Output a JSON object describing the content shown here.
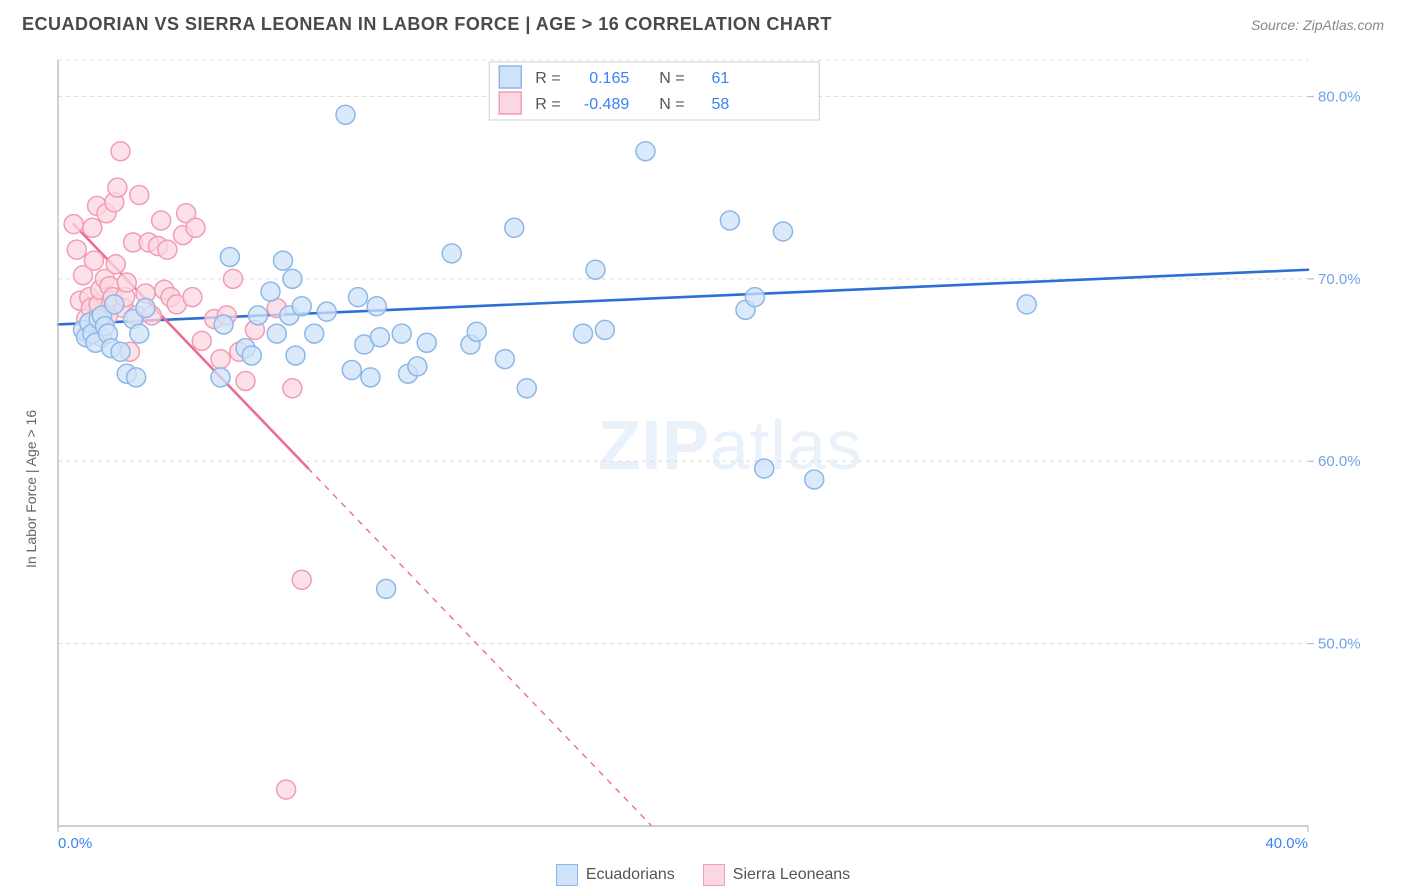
{
  "header": {
    "title": "ECUADORIAN VS SIERRA LEONEAN IN LABOR FORCE | AGE > 16 CORRELATION CHART",
    "source": "Source: ZipAtlas.com"
  },
  "chart": {
    "type": "scatter",
    "watermark": "ZIPatlas",
    "ylabel": "In Labor Force | Age > 16",
    "xlim": [
      0,
      40
    ],
    "ylim": [
      40,
      82
    ],
    "xticks": [
      {
        "v": 0,
        "label": "0.0%"
      },
      {
        "v": 40,
        "label": "40.0%"
      }
    ],
    "yticks": [
      {
        "v": 50,
        "label": "50.0%"
      },
      {
        "v": 60,
        "label": "60.0%"
      },
      {
        "v": 70,
        "label": "70.0%"
      },
      {
        "v": 80,
        "label": "80.0%"
      }
    ],
    "y_gridlines": [
      50,
      60,
      70,
      80,
      82
    ],
    "background_color": "#ffffff",
    "grid_color": "#dcdcdc",
    "axis_color": "#bdbdbd",
    "tick_color_x": "#3b82f6",
    "tick_color_y": "#6fa3e6",
    "marker_radius": 9.5,
    "marker_stroke_width": 1.5,
    "series": [
      {
        "name": "Ecuadorians",
        "fill": "#cfe3f8",
        "stroke": "#8cb8e8",
        "line_color": "#2e6fd6",
        "line_width": 2.6,
        "regression": {
          "x0": 0,
          "y0": 67.5,
          "x1": 40,
          "y1": 70.5,
          "solid_until": 40
        },
        "R": "0.165",
        "N": "61",
        "points": [
          [
            0.8,
            67.2
          ],
          [
            0.9,
            66.8
          ],
          [
            1.0,
            67.6
          ],
          [
            1.1,
            67.0
          ],
          [
            1.2,
            66.5
          ],
          [
            1.3,
            67.8
          ],
          [
            1.4,
            68.0
          ],
          [
            1.5,
            67.4
          ],
          [
            1.6,
            67.0
          ],
          [
            1.7,
            66.2
          ],
          [
            1.8,
            68.6
          ],
          [
            2.0,
            66.0
          ],
          [
            2.2,
            64.8
          ],
          [
            2.4,
            67.8
          ],
          [
            2.5,
            64.6
          ],
          [
            2.6,
            67.0
          ],
          [
            2.8,
            68.4
          ],
          [
            5.2,
            64.6
          ],
          [
            5.3,
            67.5
          ],
          [
            5.5,
            71.2
          ],
          [
            6.0,
            66.2
          ],
          [
            6.2,
            65.8
          ],
          [
            6.4,
            68.0
          ],
          [
            6.8,
            69.3
          ],
          [
            7.0,
            67.0
          ],
          [
            7.2,
            71.0
          ],
          [
            7.4,
            68.0
          ],
          [
            7.5,
            70.0
          ],
          [
            7.6,
            65.8
          ],
          [
            7.8,
            68.5
          ],
          [
            8.2,
            67.0
          ],
          [
            8.6,
            68.2
          ],
          [
            9.2,
            79.0
          ],
          [
            9.4,
            65.0
          ],
          [
            9.6,
            69.0
          ],
          [
            9.8,
            66.4
          ],
          [
            10.0,
            64.6
          ],
          [
            10.2,
            68.5
          ],
          [
            10.3,
            66.8
          ],
          [
            10.5,
            53.0
          ],
          [
            11.0,
            67.0
          ],
          [
            11.2,
            64.8
          ],
          [
            11.5,
            65.2
          ],
          [
            11.8,
            66.5
          ],
          [
            12.6,
            71.4
          ],
          [
            13.2,
            66.4
          ],
          [
            13.4,
            67.1
          ],
          [
            14.3,
            65.6
          ],
          [
            14.6,
            72.8
          ],
          [
            15.0,
            64.0
          ],
          [
            16.8,
            67.0
          ],
          [
            17.2,
            70.5
          ],
          [
            17.5,
            67.2
          ],
          [
            18.8,
            77.0
          ],
          [
            21.5,
            73.2
          ],
          [
            22.0,
            68.3
          ],
          [
            22.3,
            69.0
          ],
          [
            22.6,
            59.6
          ],
          [
            23.2,
            72.6
          ],
          [
            24.2,
            59.0
          ],
          [
            31.0,
            68.6
          ]
        ]
      },
      {
        "name": "Sierra Leoneans",
        "fill": "#fbd7e2",
        "stroke": "#f29cb5",
        "line_color": "#ec6d94",
        "line_width": 2.6,
        "regression": {
          "x0": 0.5,
          "y0": 73.0,
          "x1": 19.0,
          "y1": 40.0,
          "solid_until": 8.0
        },
        "R": "-0.489",
        "N": "58",
        "points": [
          [
            0.5,
            73.0
          ],
          [
            0.6,
            71.6
          ],
          [
            0.7,
            68.8
          ],
          [
            0.8,
            70.2
          ],
          [
            0.9,
            67.8
          ],
          [
            0.95,
            67.0
          ],
          [
            1.0,
            69.0
          ],
          [
            1.05,
            68.4
          ],
          [
            1.1,
            72.8
          ],
          [
            1.15,
            71.0
          ],
          [
            1.2,
            67.8
          ],
          [
            1.25,
            74.0
          ],
          [
            1.3,
            68.6
          ],
          [
            1.35,
            69.4
          ],
          [
            1.4,
            66.8
          ],
          [
            1.45,
            68.0
          ],
          [
            1.5,
            70.0
          ],
          [
            1.55,
            73.6
          ],
          [
            1.6,
            68.0
          ],
          [
            1.65,
            69.6
          ],
          [
            1.7,
            68.8
          ],
          [
            1.75,
            69.0
          ],
          [
            1.8,
            74.2
          ],
          [
            1.85,
            70.8
          ],
          [
            1.9,
            75.0
          ],
          [
            2.0,
            77.0
          ],
          [
            2.1,
            68.4
          ],
          [
            2.15,
            69.0
          ],
          [
            2.2,
            69.8
          ],
          [
            2.3,
            66.0
          ],
          [
            2.4,
            72.0
          ],
          [
            2.5,
            68.0
          ],
          [
            2.6,
            74.6
          ],
          [
            2.8,
            69.2
          ],
          [
            2.9,
            72.0
          ],
          [
            3.0,
            68.0
          ],
          [
            3.2,
            71.8
          ],
          [
            3.3,
            73.2
          ],
          [
            3.4,
            69.4
          ],
          [
            3.5,
            71.6
          ],
          [
            3.6,
            69.0
          ],
          [
            3.8,
            68.6
          ],
          [
            4.0,
            72.4
          ],
          [
            4.1,
            73.6
          ],
          [
            4.3,
            69.0
          ],
          [
            4.4,
            72.8
          ],
          [
            4.6,
            66.6
          ],
          [
            5.0,
            67.8
          ],
          [
            5.2,
            65.6
          ],
          [
            5.4,
            68.0
          ],
          [
            5.6,
            70.0
          ],
          [
            5.8,
            66.0
          ],
          [
            6.0,
            64.4
          ],
          [
            6.3,
            67.2
          ],
          [
            7.0,
            68.4
          ],
          [
            7.3,
            42.0
          ],
          [
            7.5,
            64.0
          ],
          [
            7.8,
            53.5
          ]
        ]
      }
    ],
    "legend_bottom": [
      {
        "label": "Ecuadorians",
        "fill": "#cfe3f8",
        "stroke": "#8cb8e8"
      },
      {
        "label": "Sierra Leoneans",
        "fill": "#fbd7e2",
        "stroke": "#f29cb5"
      }
    ]
  }
}
